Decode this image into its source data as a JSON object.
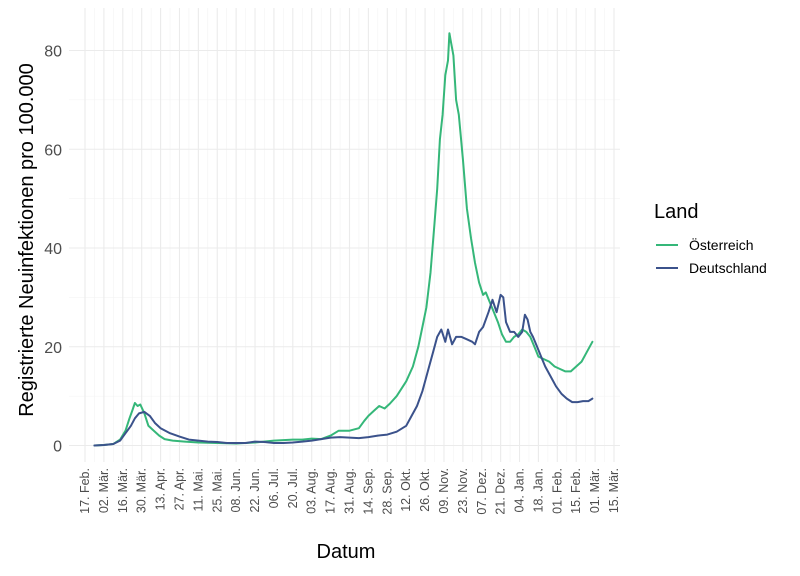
{
  "chart_data": {
    "type": "line",
    "title": "",
    "xlabel": "Datum",
    "ylabel": "Registrierte Neuinfektionen pro 100.000",
    "x_type": "date",
    "xlim": [
      "2020-02-17",
      "2021-03-15"
    ],
    "ylim": [
      0,
      85
    ],
    "y_ticks": [
      0,
      20,
      40,
      60,
      80
    ],
    "x_ticks": [
      {
        "date": "2020-02-17",
        "label": "17. Feb."
      },
      {
        "date": "2020-03-02",
        "label": "02. Mär."
      },
      {
        "date": "2020-03-16",
        "label": "16. Mär."
      },
      {
        "date": "2020-03-30",
        "label": "30. Mär."
      },
      {
        "date": "2020-04-13",
        "label": "13. Apr."
      },
      {
        "date": "2020-04-27",
        "label": "27. Apr."
      },
      {
        "date": "2020-05-11",
        "label": "11. Mai."
      },
      {
        "date": "2020-05-25",
        "label": "25. Mai."
      },
      {
        "date": "2020-06-08",
        "label": "08. Jun."
      },
      {
        "date": "2020-06-22",
        "label": "22. Jun."
      },
      {
        "date": "2020-07-06",
        "label": "06. Jul."
      },
      {
        "date": "2020-07-20",
        "label": "20. Jul."
      },
      {
        "date": "2020-08-03",
        "label": "03. Aug."
      },
      {
        "date": "2020-08-17",
        "label": "17. Aug."
      },
      {
        "date": "2020-08-31",
        "label": "31. Aug."
      },
      {
        "date": "2020-09-14",
        "label": "14. Sep."
      },
      {
        "date": "2020-09-28",
        "label": "28. Sep."
      },
      {
        "date": "2020-10-12",
        "label": "12. Okt."
      },
      {
        "date": "2020-10-26",
        "label": "26. Okt."
      },
      {
        "date": "2020-11-09",
        "label": "09. Nov."
      },
      {
        "date": "2020-11-23",
        "label": "23. Nov."
      },
      {
        "date": "2020-12-07",
        "label": "07. Dez."
      },
      {
        "date": "2020-12-21",
        "label": "21. Dez."
      },
      {
        "date": "2021-01-04",
        "label": "04. Jan."
      },
      {
        "date": "2021-01-18",
        "label": "18. Jan."
      },
      {
        "date": "2021-02-01",
        "label": "01. Feb."
      },
      {
        "date": "2021-02-15",
        "label": "15. Feb."
      },
      {
        "date": "2021-03-01",
        "label": "01. Mär."
      },
      {
        "date": "2021-03-15",
        "label": "15. Mär."
      }
    ],
    "grid": true,
    "legend": {
      "title": "Land",
      "position": "right"
    },
    "series": [
      {
        "name": "Österreich",
        "color": "#35b779",
        "points": [
          [
            "2020-02-24",
            0
          ],
          [
            "2020-03-02",
            0.1
          ],
          [
            "2020-03-09",
            0.3
          ],
          [
            "2020-03-14",
            1.2
          ],
          [
            "2020-03-18",
            3.0
          ],
          [
            "2020-03-21",
            5.5
          ],
          [
            "2020-03-23",
            7.0
          ],
          [
            "2020-03-25",
            8.6
          ],
          [
            "2020-03-27",
            8.0
          ],
          [
            "2020-03-29",
            8.3
          ],
          [
            "2020-04-01",
            6.5
          ],
          [
            "2020-04-04",
            4.0
          ],
          [
            "2020-04-08",
            3.0
          ],
          [
            "2020-04-12",
            2.0
          ],
          [
            "2020-04-16",
            1.3
          ],
          [
            "2020-04-22",
            1.0
          ],
          [
            "2020-05-01",
            0.8
          ],
          [
            "2020-05-11",
            0.6
          ],
          [
            "2020-05-25",
            0.5
          ],
          [
            "2020-06-08",
            0.4
          ],
          [
            "2020-06-22",
            0.6
          ],
          [
            "2020-07-06",
            1.0
          ],
          [
            "2020-07-13",
            1.1
          ],
          [
            "2020-07-20",
            1.2
          ],
          [
            "2020-07-27",
            1.2
          ],
          [
            "2020-08-03",
            1.4
          ],
          [
            "2020-08-10",
            1.3
          ],
          [
            "2020-08-17",
            2.0
          ],
          [
            "2020-08-23",
            3.0
          ],
          [
            "2020-08-31",
            3.0
          ],
          [
            "2020-09-07",
            3.5
          ],
          [
            "2020-09-11",
            5.0
          ],
          [
            "2020-09-14",
            6.0
          ],
          [
            "2020-09-18",
            7.0
          ],
          [
            "2020-09-22",
            8.0
          ],
          [
            "2020-09-26",
            7.5
          ],
          [
            "2020-09-30",
            8.5
          ],
          [
            "2020-10-05",
            10.0
          ],
          [
            "2020-10-12",
            13.0
          ],
          [
            "2020-10-17",
            16.0
          ],
          [
            "2020-10-21",
            20.0
          ],
          [
            "2020-10-24",
            24.0
          ],
          [
            "2020-10-27",
            28.0
          ],
          [
            "2020-10-30",
            35.0
          ],
          [
            "2020-11-02",
            45.0
          ],
          [
            "2020-11-04",
            52.0
          ],
          [
            "2020-11-06",
            62.0
          ],
          [
            "2020-11-08",
            67.0
          ],
          [
            "2020-11-10",
            75.0
          ],
          [
            "2020-11-12",
            78.0
          ],
          [
            "2020-11-13",
            83.5
          ],
          [
            "2020-11-14",
            82.0
          ],
          [
            "2020-11-16",
            79.0
          ],
          [
            "2020-11-18",
            70.0
          ],
          [
            "2020-11-20",
            67.0
          ],
          [
            "2020-11-23",
            58.0
          ],
          [
            "2020-11-26",
            48.0
          ],
          [
            "2020-11-29",
            42.0
          ],
          [
            "2020-12-02",
            37.0
          ],
          [
            "2020-12-05",
            33.0
          ],
          [
            "2020-12-08",
            30.5
          ],
          [
            "2020-12-10",
            31.0
          ],
          [
            "2020-12-13",
            29.0
          ],
          [
            "2020-12-16",
            27.0
          ],
          [
            "2020-12-19",
            25.0
          ],
          [
            "2020-12-22",
            22.5
          ],
          [
            "2020-12-25",
            21.0
          ],
          [
            "2020-12-28",
            21.0
          ],
          [
            "2020-12-31",
            22.0
          ],
          [
            "2021-01-03",
            22.5
          ],
          [
            "2021-01-06",
            23.5
          ],
          [
            "2021-01-09",
            23.0
          ],
          [
            "2021-01-12",
            22.0
          ],
          [
            "2021-01-15",
            20.0
          ],
          [
            "2021-01-18",
            18.0
          ],
          [
            "2021-01-22",
            17.5
          ],
          [
            "2021-01-26",
            17.0
          ],
          [
            "2021-01-30",
            16.0
          ],
          [
            "2021-02-03",
            15.5
          ],
          [
            "2021-02-07",
            15.0
          ],
          [
            "2021-02-11",
            15.0
          ],
          [
            "2021-02-15",
            16.0
          ],
          [
            "2021-02-19",
            17.0
          ],
          [
            "2021-02-23",
            19.0
          ],
          [
            "2021-02-27",
            21.0
          ]
        ]
      },
      {
        "name": "Deutschland",
        "color": "#3b528b",
        "points": [
          [
            "2020-02-24",
            0
          ],
          [
            "2020-03-02",
            0.1
          ],
          [
            "2020-03-09",
            0.3
          ],
          [
            "2020-03-14",
            1.0
          ],
          [
            "2020-03-18",
            2.5
          ],
          [
            "2020-03-22",
            4.0
          ],
          [
            "2020-03-25",
            5.5
          ],
          [
            "2020-03-28",
            6.5
          ],
          [
            "2020-04-01",
            6.8
          ],
          [
            "2020-04-05",
            6.0
          ],
          [
            "2020-04-09",
            4.5
          ],
          [
            "2020-04-13",
            3.5
          ],
          [
            "2020-04-20",
            2.5
          ],
          [
            "2020-04-27",
            1.8
          ],
          [
            "2020-05-04",
            1.2
          ],
          [
            "2020-05-11",
            1.0
          ],
          [
            "2020-05-18",
            0.8
          ],
          [
            "2020-05-25",
            0.7
          ],
          [
            "2020-06-01",
            0.5
          ],
          [
            "2020-06-08",
            0.5
          ],
          [
            "2020-06-15",
            0.5
          ],
          [
            "2020-06-22",
            0.8
          ],
          [
            "2020-06-29",
            0.7
          ],
          [
            "2020-07-06",
            0.5
          ],
          [
            "2020-07-13",
            0.5
          ],
          [
            "2020-07-20",
            0.6
          ],
          [
            "2020-07-27",
            0.8
          ],
          [
            "2020-08-03",
            1.0
          ],
          [
            "2020-08-10",
            1.3
          ],
          [
            "2020-08-17",
            1.6
          ],
          [
            "2020-08-24",
            1.7
          ],
          [
            "2020-08-31",
            1.6
          ],
          [
            "2020-09-07",
            1.5
          ],
          [
            "2020-09-14",
            1.7
          ],
          [
            "2020-09-21",
            2.0
          ],
          [
            "2020-09-28",
            2.2
          ],
          [
            "2020-10-05",
            2.8
          ],
          [
            "2020-10-12",
            4.0
          ],
          [
            "2020-10-16",
            6.0
          ],
          [
            "2020-10-20",
            8.0
          ],
          [
            "2020-10-24",
            11.0
          ],
          [
            "2020-10-28",
            15.0
          ],
          [
            "2020-11-01",
            19.0
          ],
          [
            "2020-11-04",
            22.0
          ],
          [
            "2020-11-07",
            23.5
          ],
          [
            "2020-11-10",
            21.0
          ],
          [
            "2020-11-12",
            23.5
          ],
          [
            "2020-11-15",
            20.5
          ],
          [
            "2020-11-18",
            22.0
          ],
          [
            "2020-11-22",
            22.0
          ],
          [
            "2020-11-26",
            21.5
          ],
          [
            "2020-11-30",
            21.0
          ],
          [
            "2020-12-02",
            20.5
          ],
          [
            "2020-12-05",
            23.0
          ],
          [
            "2020-12-08",
            24.0
          ],
          [
            "2020-12-12",
            27.0
          ],
          [
            "2020-12-15",
            29.5
          ],
          [
            "2020-12-18",
            27.0
          ],
          [
            "2020-12-21",
            30.5
          ],
          [
            "2020-12-23",
            30.0
          ],
          [
            "2020-12-25",
            25.0
          ],
          [
            "2020-12-28",
            23.0
          ],
          [
            "2020-12-31",
            23.0
          ],
          [
            "2021-01-03",
            22.0
          ],
          [
            "2021-01-06",
            23.0
          ],
          [
            "2021-01-08",
            26.5
          ],
          [
            "2021-01-10",
            25.5
          ],
          [
            "2021-01-12",
            23.0
          ],
          [
            "2021-01-14",
            22.0
          ],
          [
            "2021-01-17",
            20.0
          ],
          [
            "2021-01-20",
            18.0
          ],
          [
            "2021-01-23",
            16.0
          ],
          [
            "2021-01-27",
            14.0
          ],
          [
            "2021-01-31",
            12.0
          ],
          [
            "2021-02-04",
            10.5
          ],
          [
            "2021-02-08",
            9.5
          ],
          [
            "2021-02-12",
            8.8
          ],
          [
            "2021-02-16",
            8.8
          ],
          [
            "2021-02-20",
            9.0
          ],
          [
            "2021-02-24",
            9.0
          ],
          [
            "2021-02-27",
            9.5
          ]
        ]
      }
    ]
  }
}
